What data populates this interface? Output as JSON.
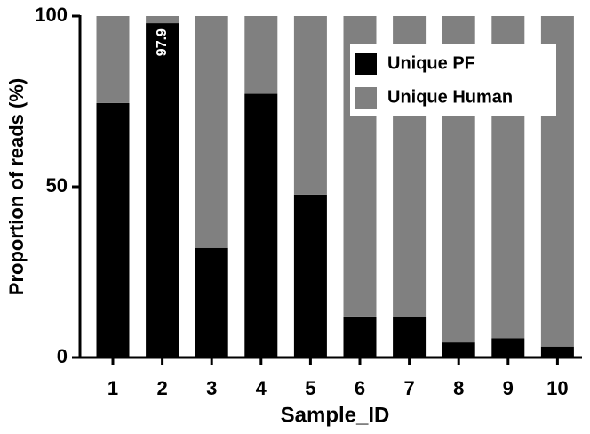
{
  "chart_data": {
    "type": "stacked_bar",
    "x_label": "Sample_ID",
    "y_label": "Proportion of reads (%)",
    "categories": [
      "1",
      "2",
      "3",
      "4",
      "5",
      "6",
      "7",
      "8",
      "9",
      "10"
    ],
    "series": [
      {
        "name": "Unique PF",
        "color": "#000000",
        "values": [
          74.5,
          97.9,
          32.1,
          77.2,
          47.7,
          12.0,
          11.9,
          4.4,
          5.6,
          3.2
        ],
        "value_labels": [
          "74.5",
          "97.9",
          "32.1",
          "77.2",
          "47.7",
          "12.0",
          "11.9",
          "4.4",
          "5.6",
          "3.2"
        ]
      },
      {
        "name": "Unique Human",
        "color": "#808080",
        "values": [
          25.5,
          2.1,
          67.9,
          22.8,
          52.3,
          88.0,
          88.1,
          95.6,
          94.4,
          96.8
        ]
      }
    ],
    "ylim": [
      0,
      100
    ],
    "yticks": [
      0,
      50,
      100
    ],
    "legend": "upper right"
  }
}
